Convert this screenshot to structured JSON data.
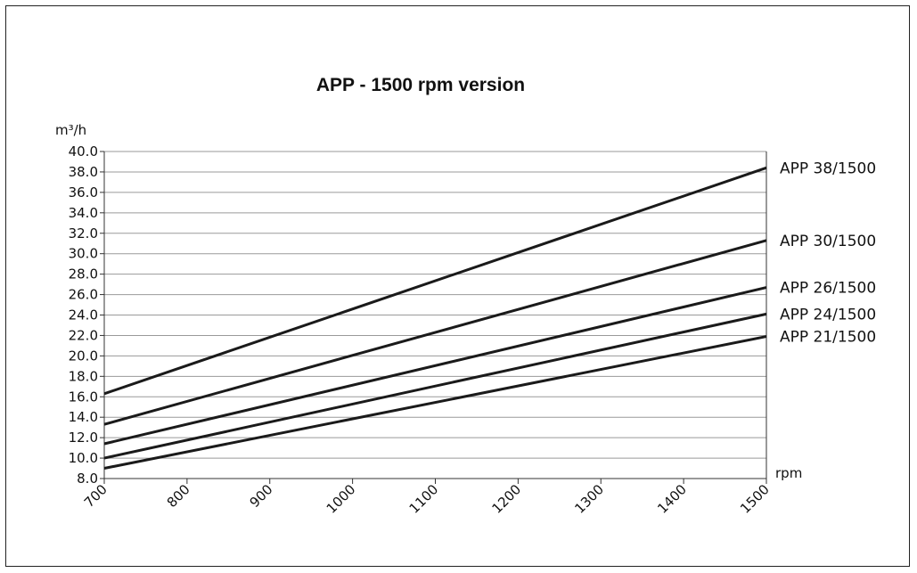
{
  "chart_data": {
    "type": "line",
    "title": "APP - 1500 rpm version",
    "ylabel": "m³/h",
    "xlabel": "rpm",
    "x": [
      700,
      1500
    ],
    "x_ticks": [
      "700",
      "800",
      "900",
      "1000",
      "1100",
      "1200",
      "1300",
      "1400",
      "1500"
    ],
    "y_ticks": [
      "8.0",
      "10.0",
      "12.0",
      "14.0",
      "16.0",
      "18.0",
      "20.0",
      "22.0",
      "24.0",
      "26.0",
      "28.0",
      "30.0",
      "32.0",
      "34.0",
      "36.0",
      "38.0",
      "40.0"
    ],
    "xlim": [
      700,
      1500
    ],
    "ylim": [
      8,
      40
    ],
    "grid": "horizontal",
    "series": [
      {
        "name": "APP 38/1500",
        "values": [
          16.3,
          38.4
        ]
      },
      {
        "name": "APP 30/1500",
        "values": [
          13.3,
          31.3
        ]
      },
      {
        "name": "APP 26/1500",
        "values": [
          11.4,
          26.7
        ]
      },
      {
        "name": "APP 24/1500",
        "values": [
          10.0,
          24.1
        ]
      },
      {
        "name": "APP 21/1500",
        "values": [
          9.0,
          21.9
        ]
      }
    ]
  }
}
